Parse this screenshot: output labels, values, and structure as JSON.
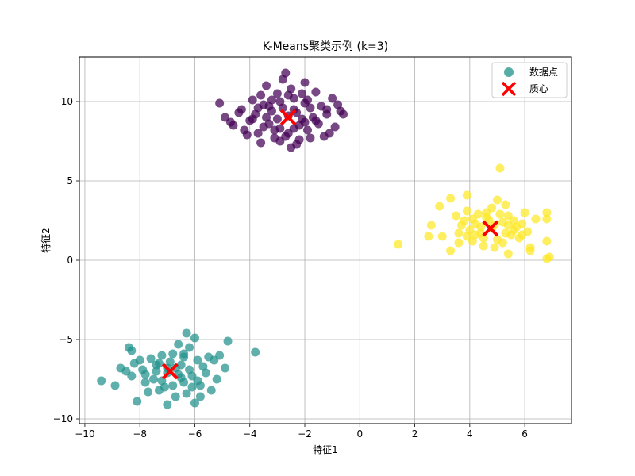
{
  "chart_data": {
    "type": "scatter",
    "title": "K-Means聚类示例 (k=3)",
    "xlabel": "特征1",
    "ylabel": "特征2",
    "xlim": [
      -10.2,
      7.7
    ],
    "ylim": [
      -10.3,
      12.8
    ],
    "xticks": [
      -10,
      -8,
      -6,
      -4,
      -2,
      0,
      2,
      4,
      6
    ],
    "yticks": [
      -10,
      -5,
      0,
      5,
      10
    ],
    "grid": true,
    "legend_position": "top-right",
    "legend": [
      {
        "label": "数据点",
        "marker": "circle",
        "color": "#3b9e96"
      },
      {
        "label": "质心",
        "marker": "x",
        "color": "#ff0000"
      }
    ],
    "series": [
      {
        "cluster": 0,
        "color": "#440154",
        "points": [
          [
            -2.6,
            9.1
          ],
          [
            -3.2,
            9.4
          ],
          [
            -2.1,
            8.9
          ],
          [
            -2.9,
            8.3
          ],
          [
            -3.5,
            9.8
          ],
          [
            -1.8,
            9.6
          ],
          [
            -2.4,
            10.2
          ],
          [
            -3.0,
            10.5
          ],
          [
            -1.5,
            8.6
          ],
          [
            -4.0,
            8.8
          ],
          [
            -3.7,
            8.0
          ],
          [
            -2.2,
            7.6
          ],
          [
            -1.2,
            9.2
          ],
          [
            -0.7,
            9.4
          ],
          [
            -0.9,
            8.4
          ],
          [
            -1.6,
            10.6
          ],
          [
            -2.0,
            11.2
          ],
          [
            -2.8,
            11.4
          ],
          [
            -3.4,
            11.0
          ],
          [
            -2.7,
            11.8
          ],
          [
            -4.3,
            9.5
          ],
          [
            -4.6,
            8.5
          ],
          [
            -4.9,
            9.0
          ],
          [
            -5.1,
            9.9
          ],
          [
            -3.9,
            10.1
          ],
          [
            -1.3,
            7.8
          ],
          [
            -2.5,
            7.1
          ],
          [
            -2.3,
            7.3
          ],
          [
            -3.1,
            7.7
          ],
          [
            -3.6,
            7.4
          ],
          [
            -4.1,
            7.9
          ],
          [
            -1.1,
            8.0
          ],
          [
            -0.8,
            9.8
          ],
          [
            -1.0,
            10.2
          ],
          [
            -2.0,
            9.9
          ],
          [
            -3.3,
            8.6
          ],
          [
            -2.8,
            9.6
          ],
          [
            -2.1,
            10.5
          ],
          [
            -3.8,
            9.2
          ],
          [
            -1.9,
            8.2
          ],
          [
            -4.4,
            9.3
          ],
          [
            -2.6,
            8.0
          ],
          [
            -3.0,
            8.9
          ],
          [
            -1.7,
            9.0
          ],
          [
            -2.4,
            9.5
          ],
          [
            -3.5,
            8.4
          ],
          [
            -2.9,
            10.0
          ],
          [
            -1.4,
            9.7
          ],
          [
            -4.2,
            8.2
          ],
          [
            -2.2,
            8.5
          ],
          [
            -3.7,
            9.6
          ],
          [
            -2.5,
            10.8
          ],
          [
            -1.6,
            8.8
          ],
          [
            -3.2,
            10.1
          ],
          [
            -0.6,
            9.2
          ],
          [
            -4.7,
            8.7
          ],
          [
            -2.7,
            7.8
          ],
          [
            -1.8,
            7.7
          ],
          [
            -3.4,
            9.0
          ],
          [
            -2.0,
            8.7
          ],
          [
            -2.3,
            9.3
          ],
          [
            -3.1,
            8.2
          ],
          [
            -3.9,
            8.9
          ],
          [
            -1.2,
            9.5
          ],
          [
            -2.6,
            10.4
          ],
          [
            -3.6,
            10.4
          ],
          [
            -2.9,
            7.5
          ],
          [
            -2.4,
            8.3
          ],
          [
            -3.3,
            9.7
          ],
          [
            -1.9,
            10.1
          ]
        ]
      },
      {
        "cluster": 1,
        "color": "#21918c",
        "points": [
          [
            -7.0,
            -7.1
          ],
          [
            -6.5,
            -7.4
          ],
          [
            -7.4,
            -6.6
          ],
          [
            -6.2,
            -6.9
          ],
          [
            -7.8,
            -7.2
          ],
          [
            -6.8,
            -7.9
          ],
          [
            -5.9,
            -7.6
          ],
          [
            -7.3,
            -8.2
          ],
          [
            -8.2,
            -6.5
          ],
          [
            -6.4,
            -6.1
          ],
          [
            -5.7,
            -6.7
          ],
          [
            -8.5,
            -7.0
          ],
          [
            -9.4,
            -7.6
          ],
          [
            -8.9,
            -7.9
          ],
          [
            -8.4,
            -5.5
          ],
          [
            -8.3,
            -5.7
          ],
          [
            -8.0,
            -6.3
          ],
          [
            -7.2,
            -6.0
          ],
          [
            -6.6,
            -5.3
          ],
          [
            -6.3,
            -4.6
          ],
          [
            -6.0,
            -4.9
          ],
          [
            -5.5,
            -6.1
          ],
          [
            -5.3,
            -6.3
          ],
          [
            -5.1,
            -6.0
          ],
          [
            -4.8,
            -5.1
          ],
          [
            -4.9,
            -6.8
          ],
          [
            -5.2,
            -7.5
          ],
          [
            -5.4,
            -8.2
          ],
          [
            -5.8,
            -8.6
          ],
          [
            -6.0,
            -9.0
          ],
          [
            -6.3,
            -8.4
          ],
          [
            -6.7,
            -8.6
          ],
          [
            -7.1,
            -8.0
          ],
          [
            -7.5,
            -7.5
          ],
          [
            -7.7,
            -8.3
          ],
          [
            -8.1,
            -8.9
          ],
          [
            -7.0,
            -9.1
          ],
          [
            -7.9,
            -6.9
          ],
          [
            -8.7,
            -6.8
          ],
          [
            -6.1,
            -7.3
          ],
          [
            -6.9,
            -6.4
          ],
          [
            -7.6,
            -6.2
          ],
          [
            -6.4,
            -7.7
          ],
          [
            -6.7,
            -6.8
          ],
          [
            -7.2,
            -7.6
          ],
          [
            -5.6,
            -7.1
          ],
          [
            -6.2,
            -5.5
          ],
          [
            -6.8,
            -5.9
          ],
          [
            -7.4,
            -7.0
          ],
          [
            -5.9,
            -6.3
          ],
          [
            -6.5,
            -6.6
          ],
          [
            -7.8,
            -7.7
          ],
          [
            -8.3,
            -7.3
          ],
          [
            -6.1,
            -8.0
          ],
          [
            -7.0,
            -6.8
          ],
          [
            -6.6,
            -7.2
          ],
          [
            -5.8,
            -7.9
          ],
          [
            -7.3,
            -6.5
          ],
          [
            -6.4,
            -5.9
          ],
          [
            -3.8,
            -5.8
          ]
        ]
      },
      {
        "cluster": 2,
        "color": "#fde725",
        "points": [
          [
            4.8,
            2.0
          ],
          [
            5.2,
            2.4
          ],
          [
            4.4,
            1.7
          ],
          [
            5.6,
            1.9
          ],
          [
            4.1,
            2.6
          ],
          [
            5.0,
            1.3
          ],
          [
            3.7,
            2.2
          ],
          [
            5.9,
            2.3
          ],
          [
            4.6,
            3.0
          ],
          [
            3.9,
            1.5
          ],
          [
            5.4,
            2.8
          ],
          [
            4.3,
            2.9
          ],
          [
            6.1,
            1.8
          ],
          [
            3.5,
            2.8
          ],
          [
            3.3,
            3.9
          ],
          [
            3.9,
            4.1
          ],
          [
            2.9,
            3.4
          ],
          [
            5.0,
            3.8
          ],
          [
            5.3,
            3.5
          ],
          [
            6.0,
            3.0
          ],
          [
            6.4,
            2.6
          ],
          [
            6.8,
            3.0
          ],
          [
            6.8,
            2.6
          ],
          [
            6.8,
            1.2
          ],
          [
            6.8,
            0.1
          ],
          [
            6.9,
            0.2
          ],
          [
            6.2,
            0.6
          ],
          [
            6.2,
            0.8
          ],
          [
            5.4,
            0.4
          ],
          [
            4.9,
            0.8
          ],
          [
            4.5,
            0.9
          ],
          [
            3.6,
            1.1
          ],
          [
            3.3,
            0.6
          ],
          [
            3.0,
            1.5
          ],
          [
            2.6,
            2.2
          ],
          [
            2.5,
            1.5
          ],
          [
            1.4,
            1.0
          ],
          [
            5.1,
            5.8
          ],
          [
            5.7,
            2.1
          ],
          [
            4.2,
            2.3
          ],
          [
            4.7,
            2.5
          ],
          [
            5.5,
            1.6
          ],
          [
            4.0,
            1.9
          ],
          [
            5.8,
            1.4
          ],
          [
            4.5,
            1.4
          ],
          [
            3.8,
            2.5
          ],
          [
            5.1,
            2.9
          ],
          [
            4.9,
            2.2
          ],
          [
            5.3,
            1.7
          ],
          [
            4.6,
            2.7
          ],
          [
            4.2,
            1.6
          ],
          [
            5.6,
            2.5
          ],
          [
            3.9,
            3.1
          ],
          [
            4.4,
            2.1
          ],
          [
            5.9,
            1.6
          ],
          [
            4.1,
            1.2
          ],
          [
            5.2,
            1.1
          ],
          [
            4.8,
            3.3
          ],
          [
            3.6,
            1.7
          ],
          [
            5.4,
            2.2
          ]
        ]
      }
    ],
    "centroids": [
      {
        "x": -2.6,
        "y": 9.0
      },
      {
        "x": -6.9,
        "y": -7.0
      },
      {
        "x": 4.75,
        "y": 2.0
      }
    ]
  }
}
